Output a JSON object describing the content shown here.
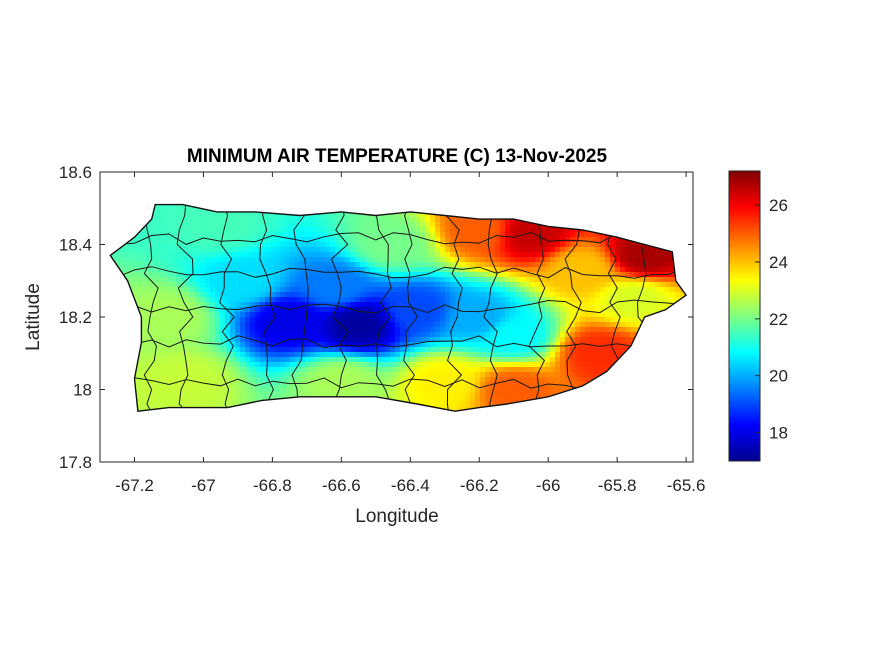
{
  "chart_data": {
    "type": "heatmap",
    "title": "MINIMUM AIR TEMPERATURE (C) 13-Nov-2025",
    "xlabel": "Longitude",
    "ylabel": "Latitude",
    "xlim": [
      -67.3,
      -65.58
    ],
    "ylim": [
      17.8,
      18.6
    ],
    "xticks": [
      -67.2,
      -67,
      -66.8,
      -66.6,
      -66.4,
      -66.2,
      -66,
      -65.8,
      -65.6
    ],
    "xtick_labels": [
      "-67.2",
      "-67",
      "-66.8",
      "-66.6",
      "-66.4",
      "-66.2",
      "-66",
      "-65.8",
      "-65.6"
    ],
    "yticks": [
      17.8,
      18,
      18.2,
      18.4,
      18.6
    ],
    "ytick_labels": [
      "17.8",
      "18",
      "18.2",
      "18.4",
      "18.6"
    ],
    "colorbar": {
      "colormap": "jet",
      "range": [
        17,
        27.2
      ],
      "ticks": [
        18,
        20,
        22,
        24,
        26
      ],
      "tick_labels": [
        "18",
        "20",
        "22",
        "24",
        "26"
      ]
    },
    "colormap_stops": [
      "#00008f",
      "#0000ff",
      "#0080ff",
      "#00ffff",
      "#80ff80",
      "#ffff00",
      "#ff8000",
      "#ff0000",
      "#800000"
    ],
    "island_outline": [
      [
        -67.14,
        18.51
      ],
      [
        -67.06,
        18.51
      ],
      [
        -66.96,
        18.49
      ],
      [
        -66.85,
        18.49
      ],
      [
        -66.72,
        18.48
      ],
      [
        -66.6,
        18.49
      ],
      [
        -66.5,
        18.48
      ],
      [
        -66.4,
        18.49
      ],
      [
        -66.3,
        18.48
      ],
      [
        -66.2,
        18.47
      ],
      [
        -66.1,
        18.47
      ],
      [
        -66.0,
        18.45
      ],
      [
        -65.9,
        18.44
      ],
      [
        -65.8,
        18.42
      ],
      [
        -65.72,
        18.4
      ],
      [
        -65.64,
        18.38
      ],
      [
        -65.63,
        18.3
      ],
      [
        -65.6,
        18.26
      ],
      [
        -65.66,
        18.22
      ],
      [
        -65.72,
        18.2
      ],
      [
        -65.76,
        18.12
      ],
      [
        -65.83,
        18.05
      ],
      [
        -65.9,
        18.01
      ],
      [
        -66.0,
        17.98
      ],
      [
        -66.12,
        17.96
      ],
      [
        -66.2,
        17.95
      ],
      [
        -66.27,
        17.94
      ],
      [
        -66.38,
        17.96
      ],
      [
        -66.5,
        17.98
      ],
      [
        -66.62,
        17.98
      ],
      [
        -66.72,
        17.98
      ],
      [
        -66.83,
        17.97
      ],
      [
        -66.93,
        17.95
      ],
      [
        -67.01,
        17.95
      ],
      [
        -67.1,
        17.95
      ],
      [
        -67.19,
        17.94
      ],
      [
        -67.2,
        18.03
      ],
      [
        -67.18,
        18.13
      ],
      [
        -67.18,
        18.2
      ],
      [
        -67.22,
        18.3
      ],
      [
        -67.27,
        18.37
      ],
      [
        -67.2,
        18.42
      ],
      [
        -67.15,
        18.47
      ]
    ],
    "temperature_anchors": [
      {
        "lon": -66.75,
        "lat": 18.19,
        "value": 18.0
      },
      {
        "lon": -66.55,
        "lat": 18.18,
        "value": 17.2
      },
      {
        "lon": -66.38,
        "lat": 18.22,
        "value": 19.0
      },
      {
        "lon": -66.62,
        "lat": 18.28,
        "value": 19.5
      },
      {
        "lon": -66.88,
        "lat": 18.3,
        "value": 20.5
      },
      {
        "lon": -66.2,
        "lat": 18.2,
        "value": 20.0
      },
      {
        "lon": -66.1,
        "lat": 18.15,
        "value": 20.8
      },
      {
        "lon": -66.45,
        "lat": 18.4,
        "value": 22.0
      },
      {
        "lon": -66.95,
        "lat": 18.45,
        "value": 21.5
      },
      {
        "lon": -67.1,
        "lat": 18.2,
        "value": 22.5
      },
      {
        "lon": -67.05,
        "lat": 18.02,
        "value": 22.8
      },
      {
        "lon": -66.6,
        "lat": 18.02,
        "value": 22.5
      },
      {
        "lon": -66.3,
        "lat": 18.02,
        "value": 23.5
      },
      {
        "lon": -66.1,
        "lat": 18.0,
        "value": 25.0
      },
      {
        "lon": -65.85,
        "lat": 18.1,
        "value": 25.5
      },
      {
        "lon": -65.75,
        "lat": 18.25,
        "value": 23.0
      },
      {
        "lon": -65.9,
        "lat": 18.33,
        "value": 24.0
      },
      {
        "lon": -66.05,
        "lat": 18.43,
        "value": 26.5
      },
      {
        "lon": -65.72,
        "lat": 18.37,
        "value": 26.8
      },
      {
        "lon": -66.2,
        "lat": 18.44,
        "value": 25.0
      }
    ]
  }
}
